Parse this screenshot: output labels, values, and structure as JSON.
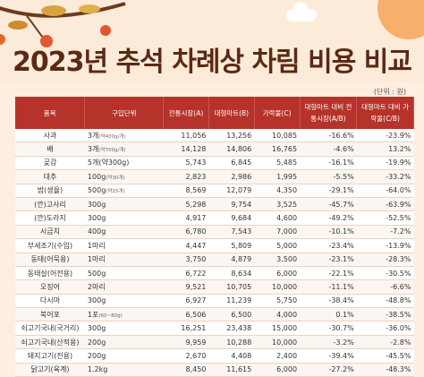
{
  "title": "2023년 추석 차례상 차림 비용 비교",
  "unit_label": "(단위 : 원)",
  "columns": [
    "품목",
    "구입단위",
    "전통시장(A)",
    "대형마트(B)",
    "가락몰(C)",
    "대형마트 대비 전통시장(A/B)",
    "대형마트 대비 가락몰(C/B)"
  ],
  "rows": [
    {
      "item": "사과",
      "unit": "3개",
      "unit_note": "(약400g/개)",
      "a": "11,056",
      "b": "13,256",
      "c": "10,085",
      "ab": "-16.6%",
      "cb": "-23.9%"
    },
    {
      "item": "배",
      "unit": "3개",
      "unit_note": "(약700g/개)",
      "a": "14,128",
      "b": "14,806",
      "c": "16,765",
      "ab": "-4.6%",
      "cb": "13.2%"
    },
    {
      "item": "곶감",
      "unit": "5개(약300g)",
      "unit_note": "",
      "a": "5,743",
      "b": "6,845",
      "c": "5,485",
      "ab": "-16.1%",
      "cb": "-19.9%"
    },
    {
      "item": "대추",
      "unit": "100g",
      "unit_note": "(약30개)",
      "a": "2,823",
      "b": "2,986",
      "c": "1,995",
      "ab": "-5.5%",
      "cb": "-33.2%"
    },
    {
      "item": "밤(생율)",
      "unit": "500g",
      "unit_note": "(약25개)",
      "a": "8,569",
      "b": "12,079",
      "c": "4,350",
      "ab": "-29.1%",
      "cb": "-64.0%"
    },
    {
      "item": "(깐)고사리",
      "unit": "300g",
      "unit_note": "",
      "a": "5,298",
      "b": "9,754",
      "c": "3,525",
      "ab": "-45.7%",
      "cb": "-63.9%"
    },
    {
      "item": "(깐)도라지",
      "unit": "300g",
      "unit_note": "",
      "a": "4,917",
      "b": "9,684",
      "c": "4,600",
      "ab": "-49.2%",
      "cb": "-52.5%"
    },
    {
      "item": "시금치",
      "unit": "400g",
      "unit_note": "",
      "a": "6,780",
      "b": "7,543",
      "c": "7,000",
      "ab": "-10.1%",
      "cb": "-7.2%"
    },
    {
      "item": "부세조기(수입)",
      "unit": "1마리",
      "unit_note": "",
      "a": "4,447",
      "b": "5,809",
      "c": "5,000",
      "ab": "-23.4%",
      "cb": "-13.9%"
    },
    {
      "item": "동태(어묵용)",
      "unit": "1마리",
      "unit_note": "",
      "a": "3,750",
      "b": "4,879",
      "c": "3,500",
      "ab": "-23.1%",
      "cb": "-28.3%"
    },
    {
      "item": "동태살(어전용)",
      "unit": "500g",
      "unit_note": "",
      "a": "6,722",
      "b": "8,634",
      "c": "6,000",
      "ab": "-22.1%",
      "cb": "-30.5%"
    },
    {
      "item": "오징어",
      "unit": "2마리",
      "unit_note": "",
      "a": "9,521",
      "b": "10,705",
      "c": "10,000",
      "ab": "-11.1%",
      "cb": "-6.6%"
    },
    {
      "item": "다시마",
      "unit": "300g",
      "unit_note": "",
      "a": "6,927",
      "b": "11,239",
      "c": "5,750",
      "ab": "-38.4%",
      "cb": "-48.8%"
    },
    {
      "item": "북어포",
      "unit": "1포",
      "unit_note": "(60~80g)",
      "a": "6,506",
      "b": "6,500",
      "c": "4,000",
      "ab": "0.1%",
      "cb": "-38.5%"
    },
    {
      "item": "쇠고기국내(국거리)",
      "unit": "300g",
      "unit_note": "",
      "a": "16,251",
      "b": "23,438",
      "c": "15,000",
      "ab": "-30.7%",
      "cb": "-36.0%"
    },
    {
      "item": "쇠고기국내(산적용)",
      "unit": "200g",
      "unit_note": "",
      "a": "9,959",
      "b": "10,288",
      "c": "10,000",
      "ab": "-3.2%",
      "cb": "-2.8%"
    },
    {
      "item": "돼지고기(전용)",
      "unit": "200g",
      "unit_note": "",
      "a": "2,670",
      "b": "4,408",
      "c": "2,400",
      "ab": "-39.4%",
      "cb": "-45.5%"
    },
    {
      "item": "닭고기(육계)",
      "unit": "1.2kg",
      "unit_note": "",
      "a": "8,450",
      "b": "11,615",
      "c": "6,000",
      "ab": "-27.2%",
      "cb": "-48.3%"
    }
  ]
}
